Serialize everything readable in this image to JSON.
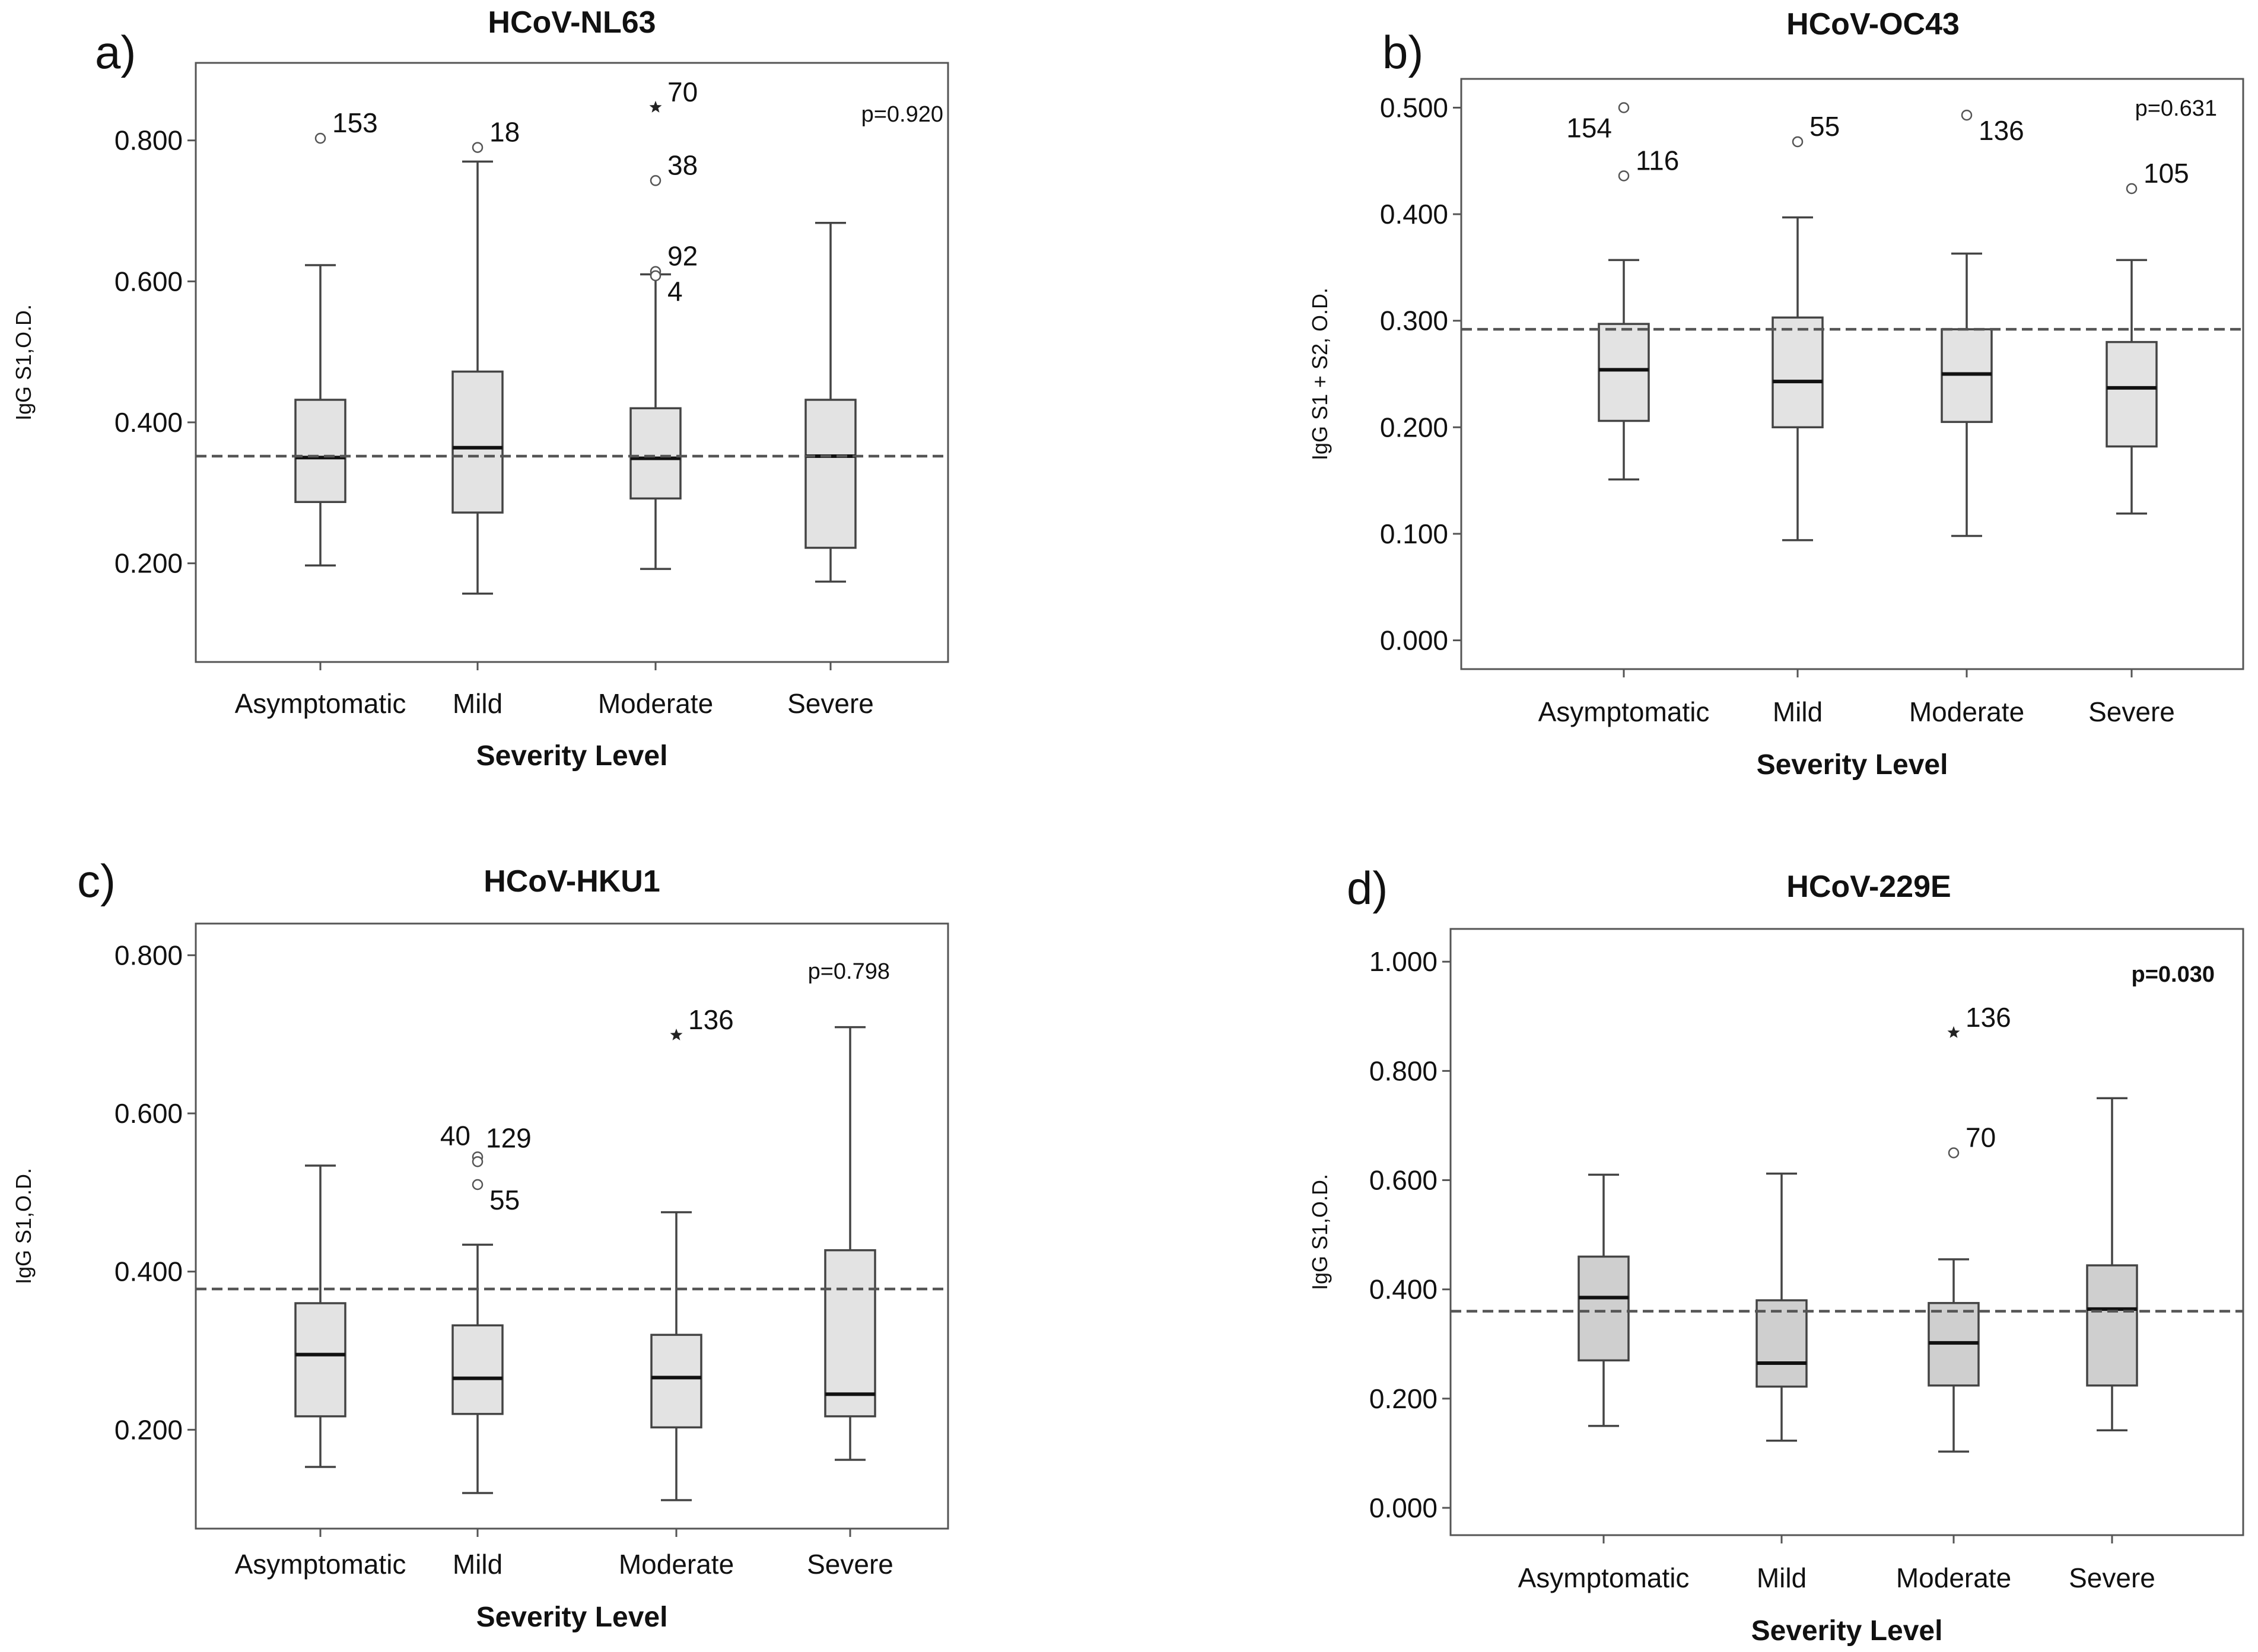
{
  "figure": {
    "x_label": "Severity Level",
    "categories": [
      "Asymptomatic",
      "Mild",
      "Moderate",
      "Severe"
    ]
  },
  "chart_data": [
    {
      "type": "box",
      "letter": "a)",
      "title": "HCoV-NL63",
      "xlabel": "Severity Level",
      "ylabel": "IgG S1,O.D.",
      "p_value": "p=0.920",
      "p_bold": false,
      "box_fill": "#e3e3e3",
      "reference_line": 0.352,
      "ylim": [
        0.06,
        0.91
      ],
      "yticks": [
        0.2,
        0.4,
        0.6,
        0.8
      ],
      "ytick_labels": [
        "0.200",
        "0.400",
        "0.600",
        "0.800"
      ],
      "categories": [
        "Asymptomatic",
        "Mild",
        "Moderate",
        "Severe"
      ],
      "boxes": [
        {
          "whisker_low": 0.197,
          "q1": 0.287,
          "median": 0.35,
          "q3": 0.432,
          "whisker_high": 0.623
        },
        {
          "whisker_low": 0.157,
          "q1": 0.272,
          "median": 0.364,
          "q3": 0.472,
          "whisker_high": 0.77
        },
        {
          "whisker_low": 0.192,
          "q1": 0.292,
          "median": 0.349,
          "q3": 0.42,
          "whisker_high": 0.61
        },
        {
          "whisker_low": 0.174,
          "q1": 0.222,
          "median": 0.352,
          "q3": 0.432,
          "whisker_high": 0.683
        }
      ],
      "outliers": [
        {
          "category": 0,
          "value": 0.803,
          "marker": "circle",
          "label": "153",
          "label_side": "right"
        },
        {
          "category": 1,
          "value": 0.79,
          "marker": "circle",
          "label": "18",
          "label_side": "right"
        },
        {
          "category": 2,
          "value": 0.847,
          "marker": "star",
          "label": "70",
          "label_side": "right"
        },
        {
          "category": 2,
          "value": 0.743,
          "marker": "circle",
          "label": "38",
          "label_side": "right"
        },
        {
          "category": 2,
          "value": 0.614,
          "marker": "circle",
          "label": "92",
          "label_side": "right"
        },
        {
          "category": 2,
          "value": 0.608,
          "marker": "circle",
          "label": "4",
          "label_side": "right-below"
        }
      ]
    },
    {
      "type": "box",
      "letter": "b)",
      "title": "HCoV-OC43",
      "xlabel": "Severity Level",
      "ylabel": "IgG S1 + S2, O.D.",
      "p_value": "p=0.631",
      "p_bold": false,
      "box_fill": "#e3e3e3",
      "reference_line": 0.292,
      "ylim": [
        -0.027,
        0.527
      ],
      "yticks": [
        0.0,
        0.1,
        0.2,
        0.3,
        0.4,
        0.5
      ],
      "ytick_labels": [
        "0.000",
        "0.100",
        "0.200",
        "0.300",
        "0.400",
        "0.500"
      ],
      "categories": [
        "Asymptomatic",
        "Mild",
        "Moderate",
        "Severe"
      ],
      "boxes": [
        {
          "whisker_low": 0.151,
          "q1": 0.206,
          "median": 0.254,
          "q3": 0.297,
          "whisker_high": 0.357
        },
        {
          "whisker_low": 0.094,
          "q1": 0.2,
          "median": 0.243,
          "q3": 0.303,
          "whisker_high": 0.397
        },
        {
          "whisker_low": 0.098,
          "q1": 0.205,
          "median": 0.25,
          "q3": 0.292,
          "whisker_high": 0.363
        },
        {
          "whisker_low": 0.119,
          "q1": 0.182,
          "median": 0.237,
          "q3": 0.28,
          "whisker_high": 0.357
        }
      ],
      "outliers": [
        {
          "category": 0,
          "value": 0.5,
          "marker": "circle",
          "label": "154",
          "label_side": "left"
        },
        {
          "category": 0,
          "value": 0.436,
          "marker": "circle",
          "label": "116",
          "label_side": "right"
        },
        {
          "category": 1,
          "value": 0.468,
          "marker": "circle",
          "label": "55",
          "label_side": "right"
        },
        {
          "category": 2,
          "value": 0.493,
          "marker": "circle",
          "label": "136",
          "label_side": "right-below"
        },
        {
          "category": 3,
          "value": 0.424,
          "marker": "circle",
          "label": "105",
          "label_side": "right"
        }
      ]
    },
    {
      "type": "box",
      "letter": "c)",
      "title": "HCoV-HKU1",
      "xlabel": "Severity Level",
      "ylabel": "IgG S1,O.D.",
      "p_value": "p=0.798",
      "p_bold": false,
      "box_fill": "#e3e3e3",
      "reference_line": 0.378,
      "ylim": [
        0.075,
        0.84
      ],
      "yticks": [
        0.2,
        0.4,
        0.6,
        0.8
      ],
      "ytick_labels": [
        "0.200",
        "0.400",
        "0.600",
        "0.800"
      ],
      "categories": [
        "Asymptomatic",
        "Mild",
        "Moderate",
        "Severe"
      ],
      "boxes": [
        {
          "whisker_low": 0.153,
          "q1": 0.217,
          "median": 0.295,
          "q3": 0.36,
          "whisker_high": 0.534
        },
        {
          "whisker_low": 0.12,
          "q1": 0.22,
          "median": 0.265,
          "q3": 0.332,
          "whisker_high": 0.434
        },
        {
          "whisker_low": 0.111,
          "q1": 0.203,
          "median": 0.266,
          "q3": 0.32,
          "whisker_high": 0.475
        },
        {
          "whisker_low": 0.162,
          "q1": 0.217,
          "median": 0.245,
          "q3": 0.427,
          "whisker_high": 0.709
        }
      ],
      "outliers": [
        {
          "category": 1,
          "value": 0.545,
          "marker": "circle",
          "label": "40",
          "label_side": "left-above"
        },
        {
          "category": 1,
          "value": 0.539,
          "marker": "circle",
          "label": "129",
          "label_side": "right-above"
        },
        {
          "category": 1,
          "value": 0.51,
          "marker": "circle",
          "label": "55",
          "label_side": "right-below"
        },
        {
          "category": 2,
          "value": 0.699,
          "marker": "star",
          "label": "136",
          "label_side": "right"
        }
      ]
    },
    {
      "type": "box",
      "letter": "d)",
      "title": "HCoV-229E",
      "xlabel": "Severity Level",
      "ylabel": "IgG S1,O.D.",
      "p_value": "p=0.030",
      "p_bold": true,
      "box_fill": "#cfcfcf",
      "reference_line": 0.36,
      "ylim": [
        -0.05,
        1.06
      ],
      "yticks": [
        0.0,
        0.2,
        0.4,
        0.6,
        0.8,
        1.0
      ],
      "ytick_labels": [
        "0.000",
        "0.200",
        "0.400",
        "0.600",
        "0.800",
        "1.000"
      ],
      "categories": [
        "Asymptomatic",
        "Mild",
        "Moderate",
        "Severe"
      ],
      "boxes": [
        {
          "whisker_low": 0.15,
          "q1": 0.27,
          "median": 0.385,
          "q3": 0.46,
          "whisker_high": 0.61
        },
        {
          "whisker_low": 0.123,
          "q1": 0.222,
          "median": 0.265,
          "q3": 0.38,
          "whisker_high": 0.612
        },
        {
          "whisker_low": 0.103,
          "q1": 0.224,
          "median": 0.302,
          "q3": 0.375,
          "whisker_high": 0.455
        },
        {
          "whisker_low": 0.142,
          "q1": 0.224,
          "median": 0.364,
          "q3": 0.444,
          "whisker_high": 0.75
        }
      ],
      "outliers": [
        {
          "category": 2,
          "value": 0.87,
          "marker": "star",
          "label": "136",
          "label_side": "right"
        },
        {
          "category": 2,
          "value": 0.65,
          "marker": "circle",
          "label": "70",
          "label_side": "right"
        }
      ]
    }
  ]
}
